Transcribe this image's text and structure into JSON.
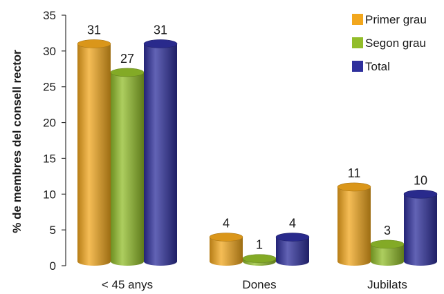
{
  "chart_data": {
    "type": "bar",
    "ylabel": "% de membres del consell rector",
    "xlabel": "",
    "ylim": [
      0,
      35
    ],
    "yticks": [
      0,
      5,
      10,
      15,
      20,
      25,
      30,
      35
    ],
    "categories": [
      "< 45 anys",
      "Dones",
      "Jubilats"
    ],
    "series": [
      {
        "name": "Primer grau",
        "values": [
          31,
          4,
          11
        ],
        "labels": [
          "31",
          "4",
          "11"
        ],
        "color": "#f2a71d"
      },
      {
        "name": "Segon grau",
        "values": [
          27,
          1,
          3
        ],
        "labels": [
          "27",
          "1",
          "3"
        ],
        "color": "#92bd2a"
      },
      {
        "name": "Total",
        "values": [
          31,
          4,
          10
        ],
        "labels": [
          "31",
          "4",
          "10"
        ],
        "color": "#2e2f9c"
      }
    ],
    "legend_position": "top-right",
    "grid": false,
    "style": "3d-cylinder"
  }
}
